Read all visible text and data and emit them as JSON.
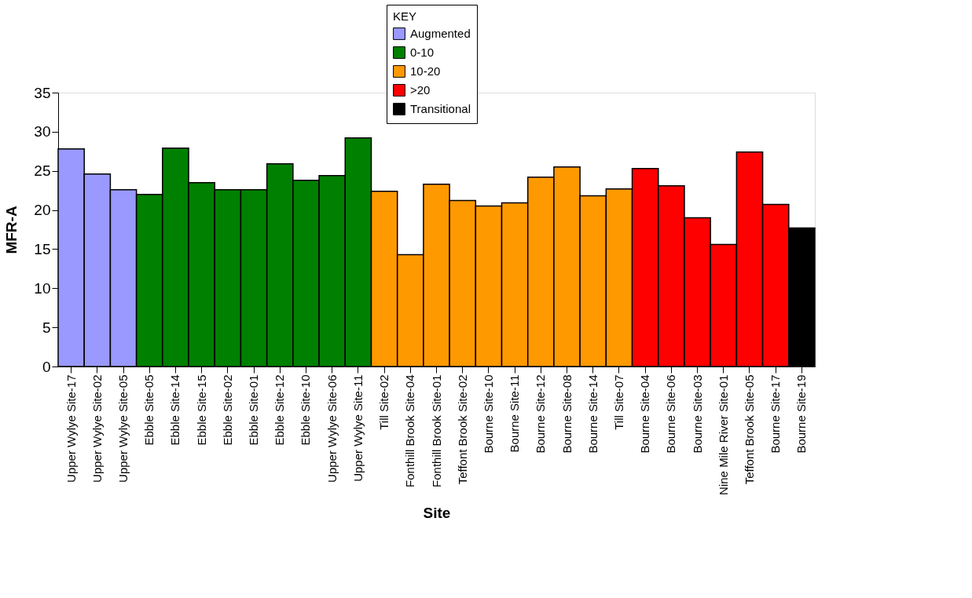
{
  "chart_data": {
    "type": "bar",
    "xlabel": "Site",
    "ylabel": "MFR-A",
    "legend_title": "KEY",
    "legend": "top",
    "categories": [
      "Upper Wylye Site-17",
      "Upper Wylye Site-02",
      "Upper Wylye Site-05",
      "Ebble Site-05",
      "Ebble Site-14",
      "Ebble Site-15",
      "Ebble Site-02",
      "Ebble Site-01",
      "Ebble Site-12",
      "Ebble Site-10",
      "Upper Wylye Site-06",
      "Upper Wylye Site-11",
      "Till Site-02",
      "Fonthill Brook Site-04",
      "Fonthill Brook Site-01",
      "Teffont Brook Site-02",
      "Bourne Site-10",
      "Bourne Site-11",
      "Bourne Site-12",
      "Bourne Site-08",
      "Bourne Site-14",
      "Till Site-07",
      "Bourne Site-04",
      "Bourne Site-06",
      "Bourne Site-03",
      "Nine Mile River Site-01",
      "Teffont Brook Site-05",
      "Bourne Site-17",
      "Bourne Site-19"
    ],
    "series": [
      {
        "name": "Augmented",
        "color": "#9999ff",
        "values": [
          27.8,
          24.6,
          22.6,
          null,
          null,
          null,
          null,
          null,
          null,
          null,
          null,
          null,
          null,
          null,
          null,
          null,
          null,
          null,
          null,
          null,
          null,
          null,
          null,
          null,
          null,
          null,
          null,
          null,
          null
        ]
      },
      {
        "name": "0-10",
        "color": "#008000",
        "values": [
          null,
          null,
          null,
          22.0,
          27.9,
          23.5,
          22.6,
          22.6,
          25.9,
          23.8,
          24.4,
          29.2,
          null,
          null,
          null,
          null,
          null,
          null,
          null,
          null,
          null,
          null,
          null,
          null,
          null,
          null,
          null,
          null,
          null
        ]
      },
      {
        "name": "10-20",
        "color": "#ff9900",
        "values": [
          null,
          null,
          null,
          null,
          null,
          null,
          null,
          null,
          null,
          null,
          null,
          null,
          22.4,
          14.3,
          23.3,
          21.2,
          20.5,
          20.9,
          24.2,
          25.5,
          21.8,
          22.7,
          null,
          null,
          null,
          null,
          null,
          null,
          null
        ]
      },
      {
        "name": ">20",
        "color": "#ff0000",
        "values": [
          null,
          null,
          null,
          null,
          null,
          null,
          null,
          null,
          null,
          null,
          null,
          null,
          null,
          null,
          null,
          null,
          null,
          null,
          null,
          null,
          null,
          null,
          25.3,
          23.1,
          19.0,
          15.6,
          27.4,
          20.7,
          null
        ]
      },
      {
        "name": "Transitional",
        "color": "#000000",
        "values": [
          null,
          null,
          null,
          null,
          null,
          null,
          null,
          null,
          null,
          null,
          null,
          null,
          null,
          null,
          null,
          null,
          null,
          null,
          null,
          null,
          null,
          null,
          null,
          null,
          null,
          null,
          null,
          null,
          17.7
        ]
      }
    ],
    "ylim": [
      0,
      35
    ],
    "yticks": [
      0,
      5,
      10,
      15,
      20,
      25,
      30,
      35
    ],
    "grid": false
  }
}
